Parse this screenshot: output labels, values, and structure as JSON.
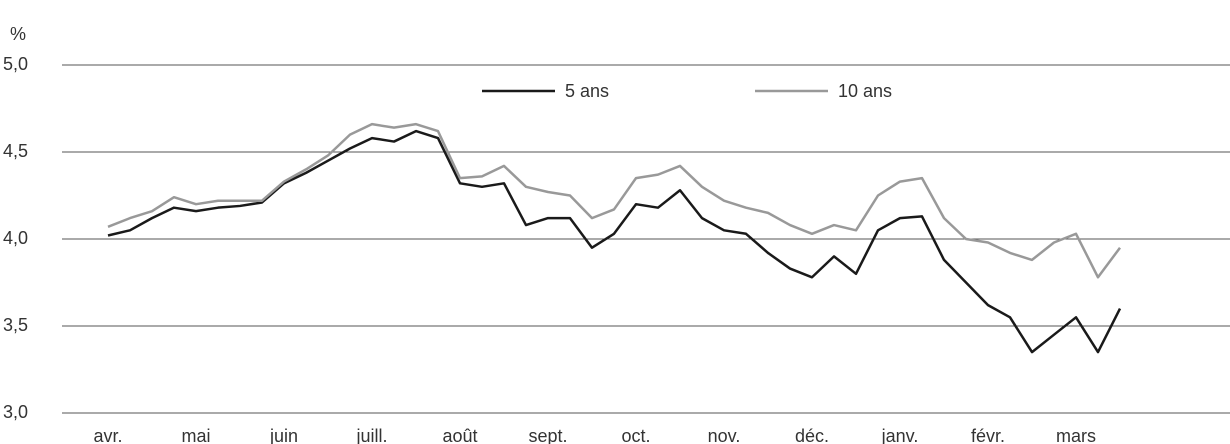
{
  "chart_data": {
    "type": "line",
    "y_unit": "%",
    "categories": [
      "avr.",
      null,
      null,
      null,
      "mai",
      null,
      null,
      null,
      "juin",
      null,
      null,
      null,
      "juill.",
      null,
      null,
      null,
      "août",
      null,
      null,
      null,
      "sept.",
      null,
      null,
      null,
      "oct.",
      null,
      null,
      null,
      "nov.",
      null,
      null,
      null,
      "déc.",
      null,
      null,
      null,
      "janv.",
      null,
      null,
      null,
      "févr.",
      null,
      null,
      null,
      "mars",
      null,
      null
    ],
    "series": [
      {
        "name": "5 ans",
        "color": "#1a1a1a",
        "values": [
          4.02,
          4.05,
          4.12,
          4.18,
          4.16,
          4.18,
          4.19,
          4.21,
          4.32,
          4.38,
          4.45,
          4.52,
          4.58,
          4.56,
          4.62,
          4.58,
          4.32,
          4.3,
          4.32,
          4.08,
          4.12,
          4.12,
          3.95,
          4.03,
          4.2,
          4.18,
          4.28,
          4.12,
          4.05,
          4.03,
          3.92,
          3.83,
          3.78,
          3.9,
          3.8,
          4.05,
          4.12,
          4.13,
          3.88,
          3.75,
          3.62,
          3.55,
          3.35,
          3.45,
          3.55,
          3.35,
          3.6
        ]
      },
      {
        "name": "10 ans",
        "color": "#999999",
        "values": [
          4.07,
          4.12,
          4.16,
          4.24,
          4.2,
          4.22,
          4.22,
          4.22,
          4.33,
          4.4,
          4.48,
          4.6,
          4.66,
          4.64,
          4.66,
          4.62,
          4.35,
          4.36,
          4.42,
          4.3,
          4.27,
          4.25,
          4.12,
          4.17,
          4.35,
          4.37,
          4.42,
          4.3,
          4.22,
          4.18,
          4.15,
          4.08,
          4.03,
          4.08,
          4.05,
          4.25,
          4.33,
          4.35,
          4.12,
          4.0,
          3.98,
          3.92,
          3.88,
          3.98,
          4.03,
          3.78,
          3.95
        ]
      }
    ],
    "ylim": [
      3,
      5
    ],
    "yticks": [
      {
        "value": 3,
        "label": "3,0"
      },
      {
        "value": 3.5,
        "label": "3,5"
      },
      {
        "value": 4,
        "label": "4,0"
      },
      {
        "value": 4.5,
        "label": "4,5"
      },
      {
        "value": 5,
        "label": "5,0"
      }
    ],
    "grid": true
  }
}
